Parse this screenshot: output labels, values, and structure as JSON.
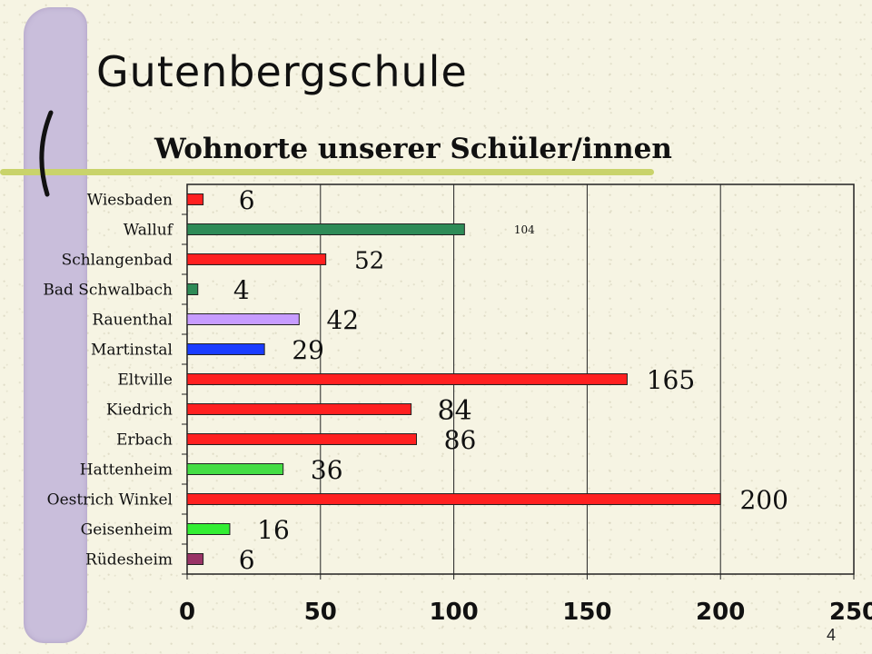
{
  "slide": {
    "title": "Gutenbergschule",
    "page_number": "4"
  },
  "chart_data": {
    "type": "bar",
    "orientation": "horizontal",
    "title": "Wohnorte unserer Schüler/innen",
    "xlabel": "",
    "ylabel": "",
    "xlim": [
      0,
      250
    ],
    "xticks": [
      0,
      50,
      100,
      150,
      200,
      250
    ],
    "grid": true,
    "legend": "none",
    "categories": [
      "Wiesbaden",
      "Walluf",
      "Schlangenbad",
      "Bad Schwalbach",
      "Rauenthal",
      "Martinstal",
      "Eltville",
      "Kiedrich",
      "Erbach",
      "Hattenheim",
      "Oestrich Winkel",
      "Geisenheim",
      "Rüdesheim"
    ],
    "values": [
      6,
      104,
      52,
      4,
      42,
      29,
      165,
      84,
      86,
      36,
      200,
      16,
      6
    ],
    "data_labels": [
      "6",
      "104",
      "52",
      "4",
      "42",
      "29",
      "165",
      "84",
      "86",
      "36",
      "200",
      "16",
      "6"
    ],
    "colors": [
      "#ff2020",
      "#2e8b57",
      "#ff2020",
      "#2e8b57",
      "#c79cff",
      "#1a3cff",
      "#ff2020",
      "#ff2020",
      "#ff2020",
      "#44dd44",
      "#ff2020",
      "#33ee33",
      "#993366"
    ]
  }
}
